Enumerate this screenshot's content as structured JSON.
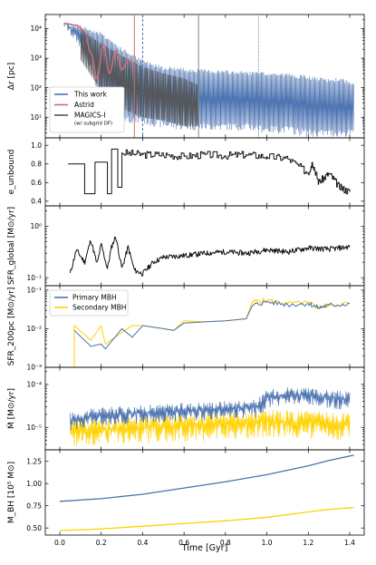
{
  "colors": {
    "this_work": "#4a72b0",
    "astrid": "#c96e72",
    "magics": "#555555",
    "black": "#111111",
    "primary": "#4a72b0",
    "secondary": "#ffd200"
  },
  "xaxis": {
    "label": "Time [Gyr]",
    "range": [
      -0.07,
      1.47
    ],
    "ticks": [
      0.0,
      0.2,
      0.4,
      0.6,
      0.8,
      1.0,
      1.2,
      1.4
    ],
    "tick_labels": [
      "0.0",
      "0.2",
      "0.4",
      "0.6",
      "0.8",
      "1.0",
      "1.2",
      "1.4"
    ]
  },
  "chart_data": [
    {
      "type": "line",
      "ylabel": "Δr [pc]",
      "yscale": "log",
      "ylim": [
        2,
        30000
      ],
      "ticks": [
        10,
        100,
        1000,
        10000
      ],
      "tick_labels": [
        "10¹",
        "10²",
        "10³",
        "10⁴"
      ],
      "vlines": [
        {
          "x": 0.36,
          "color": "#c96e72",
          "style": "solid"
        },
        {
          "x": 0.4,
          "color": "#4a72b0",
          "style": "dashed"
        },
        {
          "x": 0.67,
          "color": "#888888",
          "style": "solid"
        },
        {
          "x": 0.96,
          "color": "#4a72b0",
          "style": "dotted"
        }
      ],
      "legend": {
        "placement": "bottom-left",
        "entries": [
          "This work",
          "Astrid",
          "MAGICS-I"
        ],
        "note": "(w/ subgrid DF)"
      },
      "series": [
        {
          "name": "This work",
          "envelope_x": [
            0.02,
            0.1,
            0.2,
            0.3,
            0.4,
            0.5,
            0.6,
            0.7,
            0.8,
            0.9,
            1.0,
            1.1,
            1.2,
            1.25,
            1.3,
            1.35,
            1.4,
            1.42
          ],
          "envelope_y": [
            15000,
            12000,
            7000,
            2000,
            800,
            500,
            420,
            380,
            350,
            330,
            300,
            280,
            230,
            200,
            180,
            200,
            150,
            120
          ],
          "min_y": [
            15000,
            3000,
            60,
            10,
            8,
            6,
            5,
            5,
            5,
            5,
            4,
            4,
            3,
            3,
            3,
            3,
            3,
            3
          ]
        },
        {
          "name": "Astrid",
          "x": [
            0.02,
            0.08,
            0.12,
            0.15,
            0.18,
            0.21,
            0.24,
            0.27,
            0.3,
            0.33,
            0.36
          ],
          "y": [
            15000,
            13000,
            8000,
            1500,
            200,
            3000,
            300,
            1800,
            400,
            900,
            500
          ]
        },
        {
          "name": "MAGICS-I",
          "envelope_x": [
            0.1,
            0.2,
            0.3,
            0.4,
            0.5,
            0.6,
            0.67
          ],
          "envelope_y": [
            9000,
            3000,
            1200,
            500,
            300,
            200,
            120
          ],
          "min_y": [
            900,
            80,
            20,
            10,
            8,
            5,
            5
          ]
        }
      ]
    },
    {
      "type": "line",
      "ylabel": "e_unbound",
      "ylim": [
        0.35,
        1.08
      ],
      "ticks": [
        0.4,
        0.6,
        0.8,
        1.0
      ],
      "tick_labels": [
        "0.4",
        "0.6",
        "0.8",
        "1.0"
      ],
      "series": [
        {
          "x": [
            0.04,
            0.12,
            0.12,
            0.17,
            0.17,
            0.23,
            0.23,
            0.25,
            0.25,
            0.28,
            0.28,
            0.3,
            0.3,
            0.4,
            0.5,
            0.6,
            0.7,
            0.8,
            0.9,
            1.0,
            1.1,
            1.2,
            1.22,
            1.25,
            1.3,
            1.35,
            1.4
          ],
          "y": [
            0.8,
            0.8,
            0.48,
            0.48,
            0.82,
            0.82,
            0.48,
            0.48,
            0.96,
            0.96,
            0.55,
            0.55,
            0.92,
            0.9,
            0.9,
            0.88,
            0.9,
            0.89,
            0.9,
            0.88,
            0.86,
            0.7,
            0.82,
            0.6,
            0.7,
            0.55,
            0.5
          ]
        }
      ]
    },
    {
      "type": "line",
      "ylabel": "SFR_global [M⊙/yr]",
      "yscale": "log",
      "ylim": [
        0.07,
        2.5
      ],
      "ticks": [
        0.1,
        1.0
      ],
      "tick_labels": [
        "10⁻¹",
        "10⁰"
      ],
      "series": [
        {
          "x": [
            0.05,
            0.08,
            0.12,
            0.15,
            0.18,
            0.2,
            0.23,
            0.25,
            0.27,
            0.3,
            0.33,
            0.36,
            0.4,
            0.45,
            0.5,
            0.6,
            0.7,
            0.8,
            0.9,
            1.0,
            1.1,
            1.2,
            1.3,
            1.4
          ],
          "y": [
            0.12,
            0.35,
            0.2,
            0.55,
            0.18,
            0.45,
            0.15,
            0.4,
            0.65,
            0.15,
            0.4,
            0.14,
            0.12,
            0.2,
            0.25,
            0.27,
            0.3,
            0.32,
            0.3,
            0.35,
            0.32,
            0.38,
            0.36,
            0.4
          ]
        }
      ]
    },
    {
      "type": "line",
      "ylabel": "SFR_200pc [M⊙/yr]",
      "yscale": "log",
      "ylim": [
        0.001,
        0.13
      ],
      "ticks": [
        0.001,
        0.01,
        0.1
      ],
      "tick_labels": [
        "10⁻³",
        "10⁻²",
        "10⁻¹"
      ],
      "legend": {
        "placement": "top-left",
        "entries": [
          "Primary MBH",
          "Secondary MBH"
        ]
      },
      "series": [
        {
          "name": "Primary MBH",
          "x": [
            0.07,
            0.15,
            0.2,
            0.22,
            0.3,
            0.35,
            0.4,
            0.5,
            0.55,
            0.6,
            0.7,
            0.8,
            0.9,
            0.93,
            1.0,
            1.1,
            1.2,
            1.25,
            1.3,
            1.4
          ],
          "y": [
            0.009,
            0.0035,
            0.004,
            0.003,
            0.01,
            0.006,
            0.012,
            0.01,
            0.009,
            0.014,
            0.015,
            0.016,
            0.018,
            0.04,
            0.05,
            0.042,
            0.045,
            0.035,
            0.04,
            0.045
          ]
        },
        {
          "name": "Secondary MBH",
          "x": [
            0.07,
            0.07,
            0.15,
            0.2,
            0.22,
            0.3,
            0.35,
            0.4,
            0.5,
            0.55,
            0.6,
            0.7,
            0.8,
            0.9,
            0.93,
            1.0,
            1.1,
            1.2,
            1.25,
            1.3,
            1.4
          ],
          "y": [
            0.001,
            0.012,
            0.005,
            0.012,
            0.004,
            0.008,
            0.012,
            0.012,
            0.01,
            0.009,
            0.016,
            0.015,
            0.016,
            0.018,
            0.05,
            0.055,
            0.045,
            0.047,
            0.035,
            0.042,
            0.045
          ]
        }
      ]
    },
    {
      "type": "line",
      "ylabel": "Ṁ [M⊙/yr]",
      "yscale": "log",
      "ylim": [
        3e-06,
        0.00025
      ],
      "ticks": [
        1e-05,
        0.0001
      ],
      "tick_labels": [
        "10⁻⁵",
        "10⁻⁴"
      ],
      "series": [
        {
          "name": "Primary MBH",
          "x": [
            0.05,
            0.2,
            0.4,
            0.6,
            0.8,
            0.95,
            1.0,
            1.1,
            1.2,
            1.3,
            1.4
          ],
          "y": [
            1.5e-05,
            2e-05,
            2.2e-05,
            2.5e-05,
            2.8e-05,
            3e-05,
            5e-05,
            6e-05,
            5.5e-05,
            5e-05,
            4.5e-05
          ],
          "spread": 1.8
        },
        {
          "name": "Secondary MBH",
          "x": [
            0.05,
            0.2,
            0.4,
            0.6,
            0.8,
            1.0,
            1.2,
            1.4
          ],
          "y": [
            9e-06,
            9e-06,
            1e-05,
            1.1e-05,
            1.2e-05,
            1.4e-05,
            1.3e-05,
            1.2e-05
          ],
          "spread": 2.4
        }
      ]
    },
    {
      "type": "line",
      "ylabel": "M_BH [10⁵ M⊙]",
      "ylim": [
        0.42,
        1.38
      ],
      "ticks": [
        0.5,
        0.75,
        1.0,
        1.25
      ],
      "tick_labels": [
        "0.50",
        "0.75",
        "1.00",
        "1.25"
      ],
      "series": [
        {
          "name": "Primary MBH",
          "x": [
            0.0,
            0.2,
            0.4,
            0.6,
            0.8,
            1.0,
            1.2,
            1.3,
            1.42
          ],
          "y": [
            0.8,
            0.83,
            0.88,
            0.95,
            1.02,
            1.1,
            1.2,
            1.26,
            1.32
          ]
        },
        {
          "name": "Secondary MBH",
          "x": [
            0.0,
            0.2,
            0.4,
            0.6,
            0.8,
            1.0,
            1.2,
            1.3,
            1.42
          ],
          "y": [
            0.47,
            0.49,
            0.52,
            0.55,
            0.58,
            0.62,
            0.68,
            0.71,
            0.73
          ]
        }
      ]
    }
  ],
  "legend_labels": {
    "this_work": "This work",
    "astrid": "Astrid",
    "magics": "MAGICS-I",
    "magics_note": "(w/ subgrid DF)",
    "primary": "Primary MBH",
    "secondary": "Secondary MBH"
  }
}
